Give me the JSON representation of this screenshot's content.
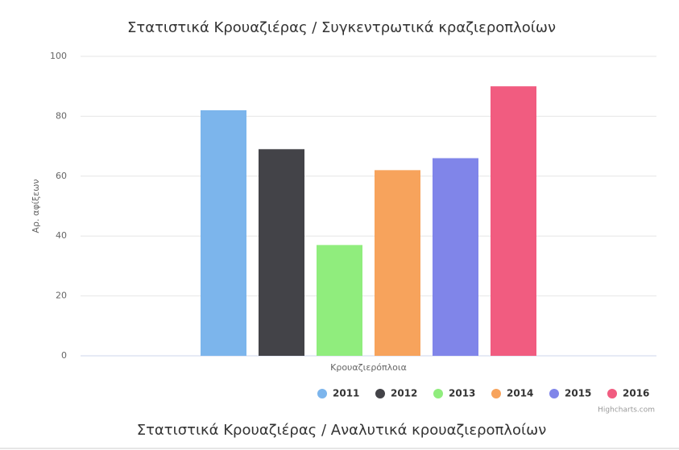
{
  "chart_data": {
    "type": "bar",
    "title": "Στατιστικά Κρουαζιέρας / Συγκεντρωτικά κραζιεροπλοίων",
    "y_label": "Αρ. αφίξεων",
    "categories": [
      "Κρουαζιερόπλοια"
    ],
    "series": [
      {
        "name": "2011",
        "color": "#7cb5ec",
        "values": [
          82
        ]
      },
      {
        "name": "2012",
        "color": "#434348",
        "values": [
          69
        ]
      },
      {
        "name": "2013",
        "color": "#90ed7d",
        "values": [
          37
        ]
      },
      {
        "name": "2014",
        "color": "#f7a35c",
        "values": [
          62
        ]
      },
      {
        "name": "2015",
        "color": "#8085e9",
        "values": [
          66
        ]
      },
      {
        "name": "2016",
        "color": "#f15c80",
        "values": [
          90
        ]
      }
    ],
    "ylim": [
      0,
      100
    ],
    "yticks": [
      0,
      20,
      40,
      60,
      80,
      100
    ],
    "grid": true,
    "legend": "bottom-right",
    "credits": "Highcharts.com"
  },
  "next_section_title": "Στατιστικά Κρουαζιέρας / Αναλυτικά κρουαζιεροπλοίων"
}
